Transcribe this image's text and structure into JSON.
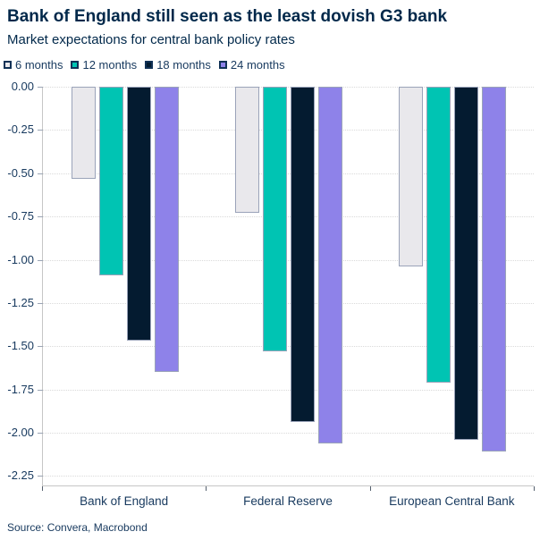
{
  "title": "Bank of England still seen as the least dovish G3 bank",
  "subtitle": "Market expectations for central bank policy rates",
  "source": "Source: Convera, Macrobond",
  "colors": {
    "title": "#00284a",
    "text": "#17395e",
    "grid": "#dadada",
    "axis": "#c6c6c6",
    "bar_border": "#9aa3b9",
    "legend_border": "#103156"
  },
  "chart_data": {
    "type": "bar",
    "orientation": "vertical-negative",
    "title": "Bank of England still seen as the least dovish G3 bank",
    "subtitle": "Market expectations for central bank policy rates",
    "categories": [
      "Bank of England",
      "Federal Reserve",
      "European Central Bank"
    ],
    "series": [
      {
        "name": "6 months",
        "color": "#e9e8ec",
        "values": [
          -0.53,
          -0.73,
          -1.04
        ]
      },
      {
        "name": "12 months",
        "color": "#00c4b3",
        "values": [
          -1.09,
          -1.53,
          -1.71
        ]
      },
      {
        "name": "18 months",
        "color": "#041b30",
        "values": [
          -1.47,
          -1.94,
          -2.04
        ]
      },
      {
        "name": "24 months",
        "color": "#8e82e9",
        "values": [
          -1.65,
          -2.06,
          -2.11
        ]
      }
    ],
    "ylim": [
      -2.31,
      0
    ],
    "ytick_labels": [
      "0.00",
      "-0.25",
      "-0.50",
      "-0.75",
      "-1.00",
      "-1.25",
      "-1.50",
      "-1.75",
      "-2.00",
      "-2.25"
    ],
    "grid": "horizontal-dotted",
    "legend_position": "top-left",
    "xlabel": "",
    "ylabel": ""
  }
}
